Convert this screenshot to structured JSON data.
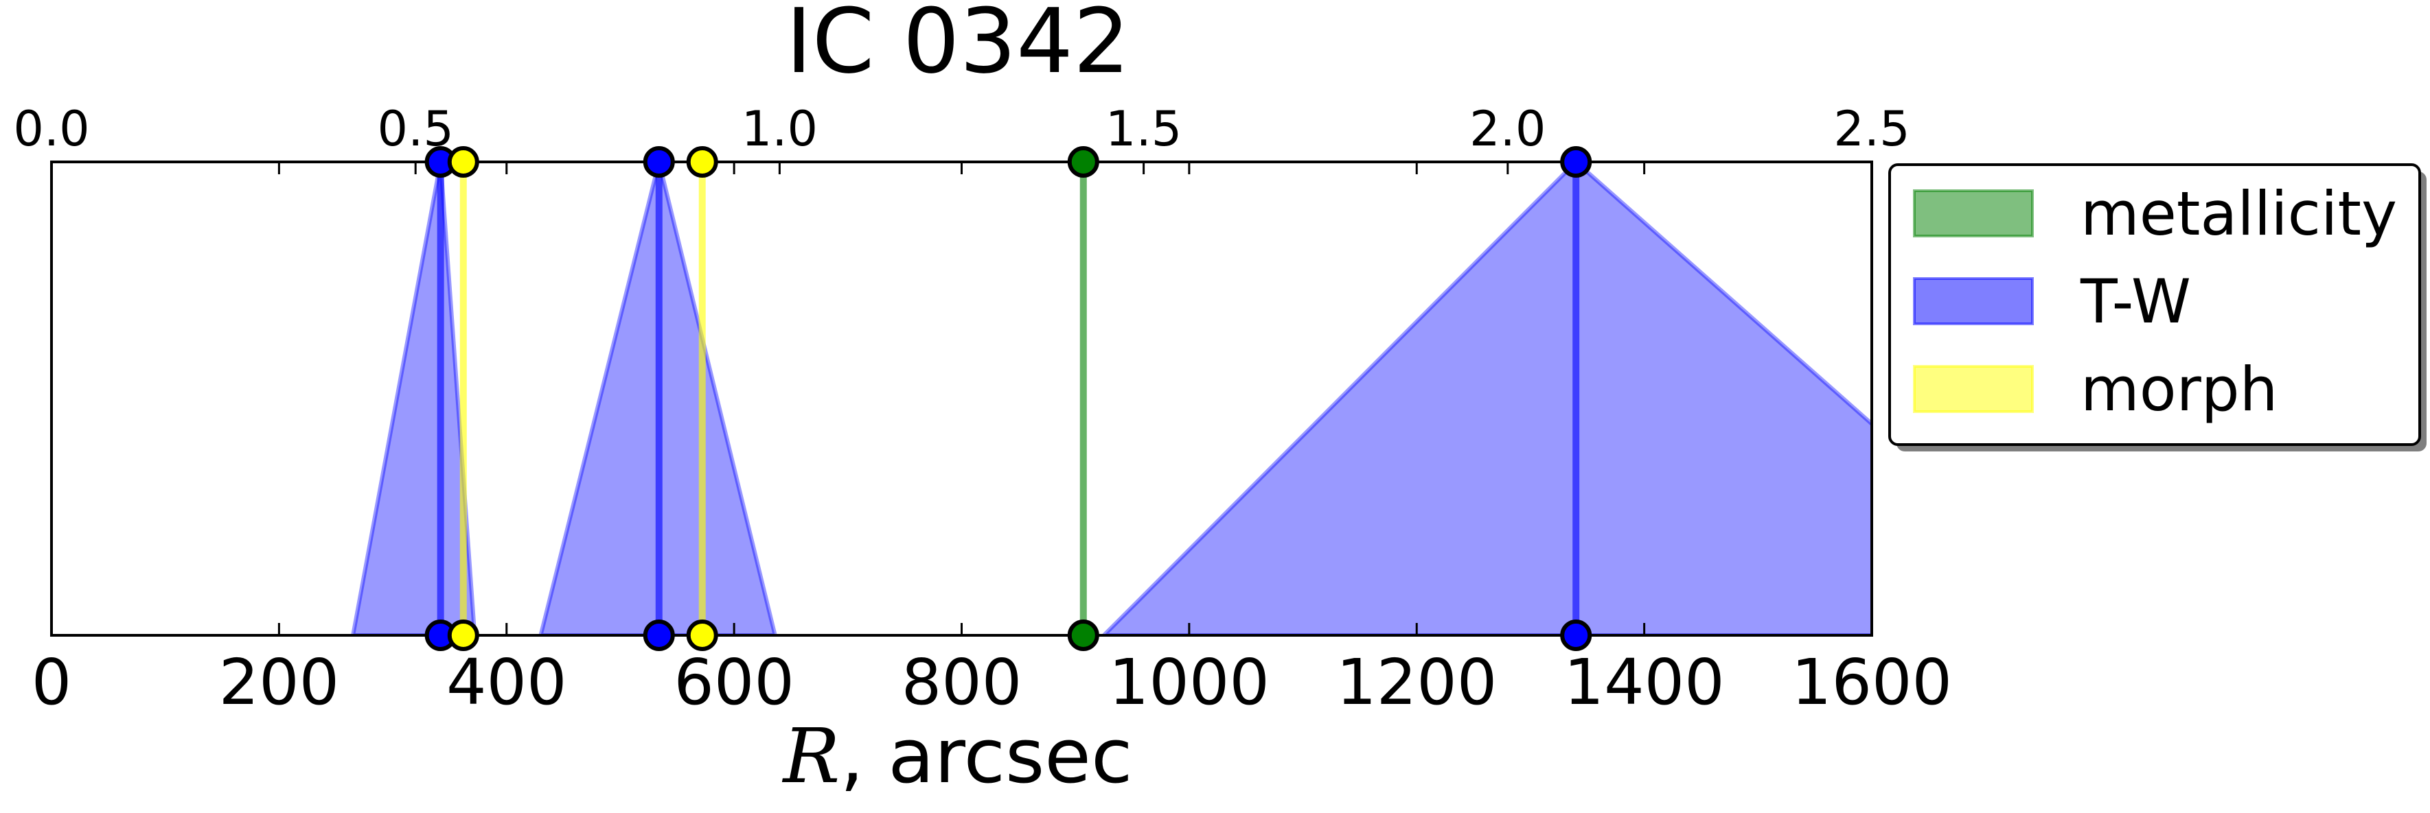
{
  "chart_data": {
    "type": "area",
    "title": "IC 0342",
    "xlabel_symbol": "R",
    "xlabel_unit": ", arcsec",
    "xlim": [
      0,
      1600
    ],
    "top_xlim": [
      0.0,
      2.5
    ],
    "bottom_ticks": [
      "0",
      "200",
      "400",
      "600",
      "800",
      "1000",
      "1200",
      "1400",
      "1600"
    ],
    "top_ticks": [
      "0.0",
      "0.5",
      "1.0",
      "1.5",
      "2.0",
      "2.5"
    ],
    "legend": {
      "position": "right",
      "entries": [
        {
          "label": "metallicity",
          "color": "#008000"
        },
        {
          "label": "T-W",
          "color": "#0000ff"
        },
        {
          "label": "morph",
          "color": "#ffff00"
        }
      ]
    },
    "tw_regions": [
      {
        "center": 342,
        "low": 265,
        "high": 372
      },
      {
        "center": 534,
        "low": 430,
        "high": 636
      },
      {
        "center": 1340,
        "low": 925,
        "high": 1810
      }
    ],
    "lines": [
      {
        "series": "T-W",
        "x": 342,
        "color": "#0000ff"
      },
      {
        "series": "T-W",
        "x": 534,
        "color": "#0000ff"
      },
      {
        "series": "T-W",
        "x": 1340,
        "color": "#0000ff"
      },
      {
        "series": "morph",
        "x": 362,
        "color": "#ffff00"
      },
      {
        "series": "morph",
        "x": 572,
        "color": "#ffff00"
      },
      {
        "series": "metallicity",
        "x": 907,
        "color": "#008000"
      }
    ]
  }
}
